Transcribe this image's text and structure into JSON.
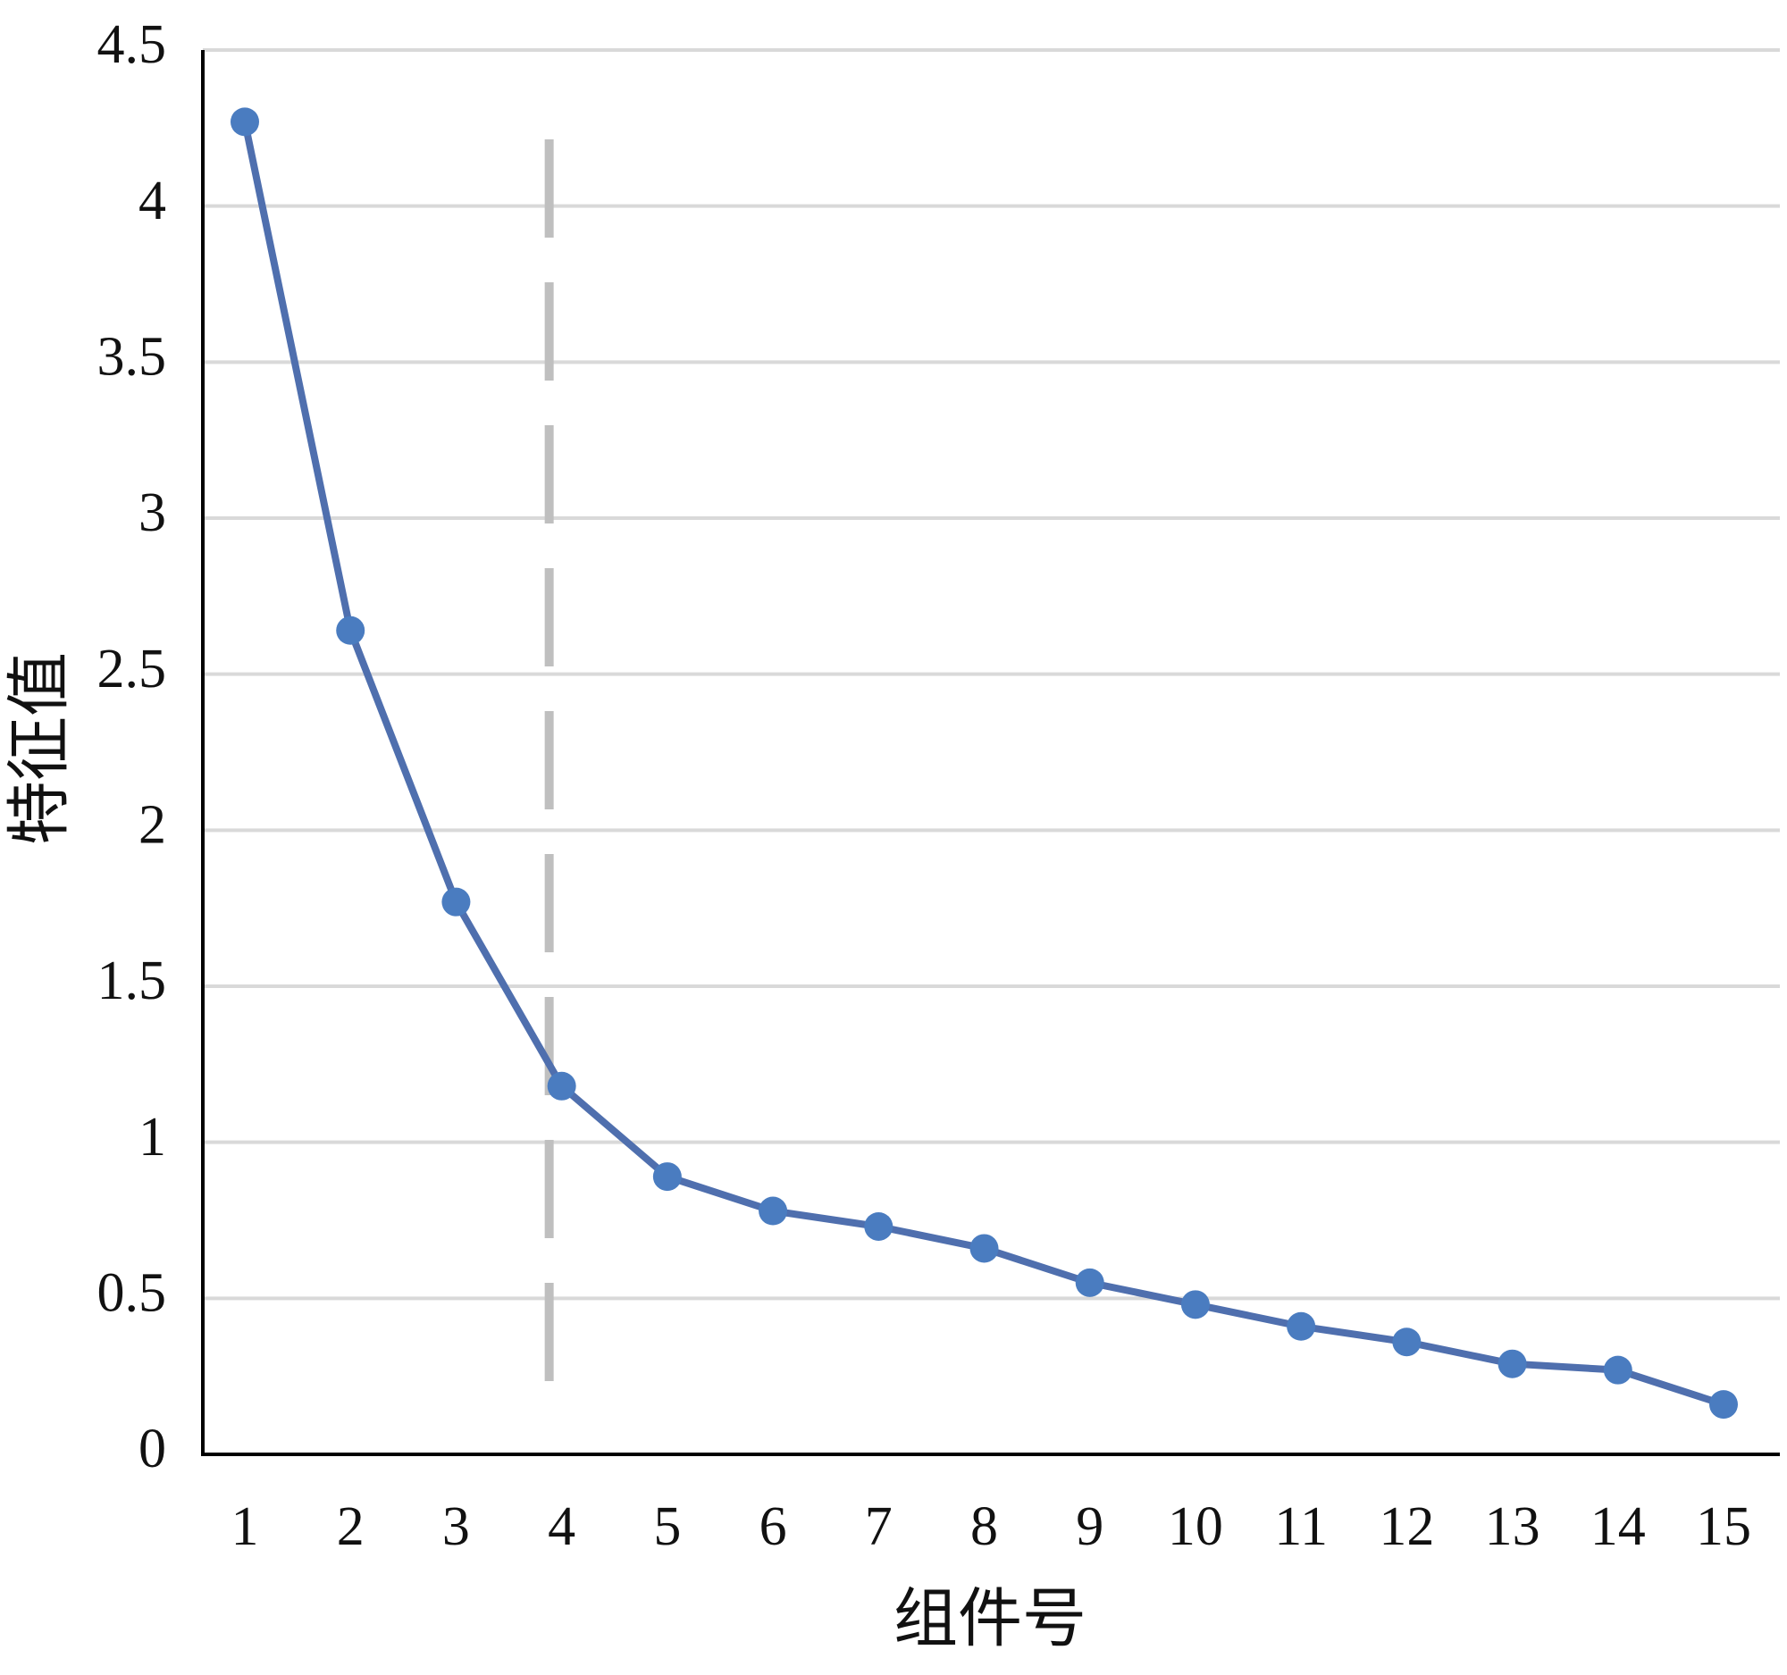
{
  "chart_data": {
    "type": "line",
    "x_label": "组件号",
    "y_label": "特征值",
    "categories": [
      "1",
      "2",
      "3",
      "4",
      "5",
      "6",
      "7",
      "8",
      "9",
      "10",
      "11",
      "12",
      "13",
      "14",
      "15"
    ],
    "series": [
      {
        "name": "特征值",
        "color": "#4f6fae",
        "marker_color": "#4a7cc0",
        "values": [
          4.27,
          2.64,
          1.77,
          1.18,
          0.89,
          0.78,
          0.73,
          0.66,
          0.55,
          0.48,
          0.41,
          0.36,
          0.29,
          0.27,
          0.16
        ]
      }
    ],
    "ylim": [
      0,
      4.5
    ],
    "yticks": [
      0,
      0.5,
      1,
      1.5,
      2,
      2.5,
      3,
      3.5,
      4,
      4.5
    ],
    "grid": true,
    "reference_category": "4",
    "reference_color": "#bfbfbf"
  }
}
